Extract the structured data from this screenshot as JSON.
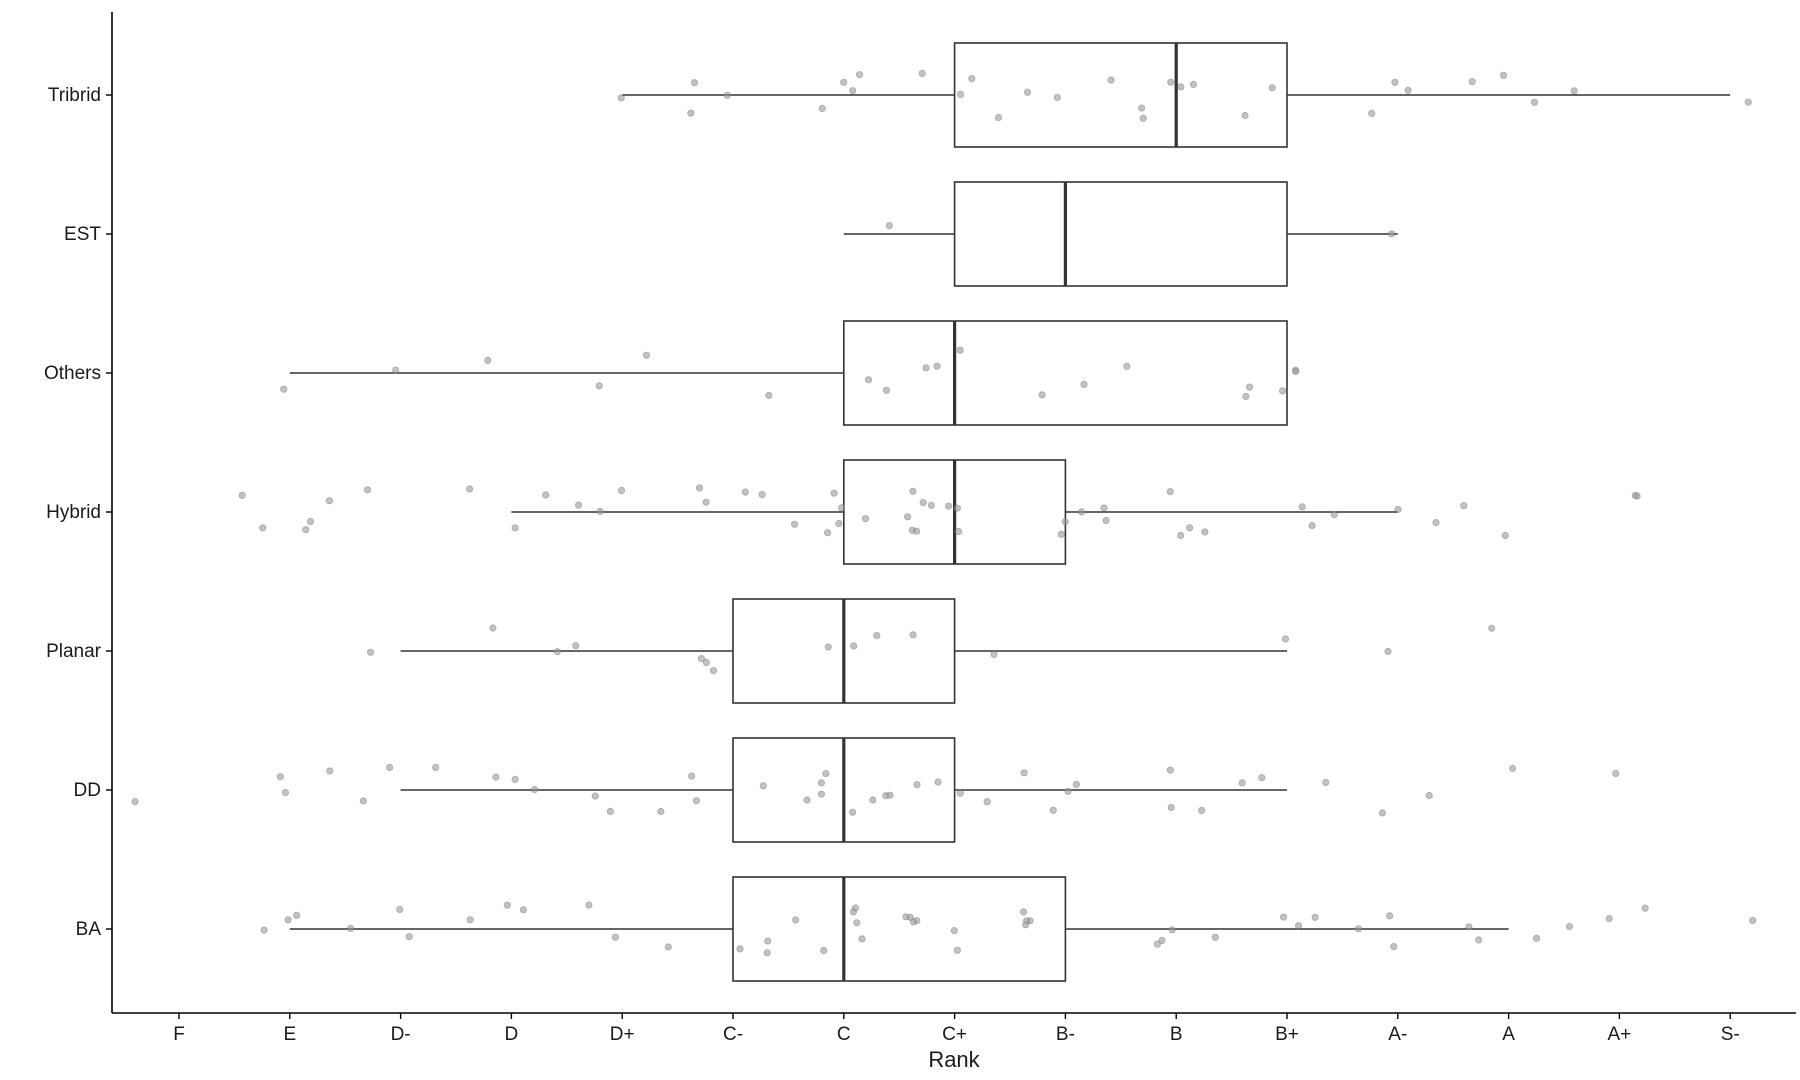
{
  "chart_data": {
    "type": "boxplot",
    "title": "",
    "xlabel": "Rank",
    "ylabel": "",
    "x_ticks": [
      "F",
      "E",
      "D-",
      "D",
      "D+",
      "C-",
      "C",
      "C+",
      "B-",
      "B",
      "B+",
      "A-",
      "A",
      "A+",
      "S-"
    ],
    "grid": false,
    "jitter_points": true,
    "colors": {
      "box_stroke": "#333333",
      "point_fill": "#9a9a9a",
      "axis": "#000000"
    },
    "categories": [
      "Tribrid",
      "EST",
      "Others",
      "Hybrid",
      "Planar",
      "DD",
      "BA"
    ],
    "series": [
      {
        "name": "Tribrid",
        "whisker_low": "D+",
        "q1": "C+",
        "median": "B",
        "q3": "B+",
        "whisker_high": "S-",
        "points": [
          "D+",
          "C-",
          "C-",
          "C-",
          "C",
          "C",
          "C",
          "C",
          "C+",
          "C+",
          "C+",
          "C+",
          "B-",
          "B-",
          "B-",
          "B",
          "B",
          "B",
          "B",
          "B",
          "B+",
          "B+",
          "A-",
          "A-",
          "A-",
          "A",
          "A",
          "A",
          "A+",
          "S-"
        ]
      },
      {
        "name": "EST",
        "whisker_low": "C",
        "q1": "C+",
        "median": "B-",
        "q3": "B+",
        "whisker_high": "A-",
        "points": [
          "C",
          "A-"
        ]
      },
      {
        "name": "Others",
        "whisker_low": "E",
        "q1": "C",
        "median": "C+",
        "q3": "B+",
        "whisker_high": "B+",
        "points": [
          "E",
          "D-",
          "D",
          "D+",
          "D+",
          "C-",
          "C",
          "C",
          "C+",
          "C+",
          "C+",
          "B-",
          "B-",
          "B",
          "B+",
          "B+",
          "B+",
          "B+",
          "B+"
        ]
      },
      {
        "name": "Hybrid",
        "whisker_low": "D",
        "q1": "C",
        "median": "C+",
        "q3": "B-",
        "whisker_high": "A-",
        "points": [
          "E",
          "E",
          "E",
          "E",
          "E",
          "D-",
          "D",
          "D",
          "D",
          "D+",
          "D+",
          "D+",
          "C-",
          "C-",
          "C-",
          "C-",
          "C",
          "C",
          "C",
          "C",
          "C",
          "C",
          "C+",
          "C+",
          "C+",
          "C+",
          "C+",
          "C+",
          "C+",
          "C+",
          "C+",
          "B-",
          "B-",
          "B-",
          "B-",
          "B-",
          "B",
          "B",
          "B",
          "B",
          "B+",
          "B+",
          "B+",
          "A-",
          "A-",
          "A",
          "A",
          "A+",
          "A+"
        ]
      },
      {
        "name": "Planar",
        "whisker_low": "D-",
        "q1": "C-",
        "median": "C",
        "q3": "C+",
        "whisker_high": "B+",
        "points": [
          "D-",
          "D",
          "D",
          "D+",
          "C-",
          "C-",
          "C-",
          "C",
          "C",
          "C",
          "C+",
          "C+",
          "B+",
          "A-",
          "A"
        ]
      },
      {
        "name": "DD",
        "whisker_low": "D-",
        "q1": "C-",
        "median": "C",
        "q3": "C+",
        "whisker_high": "B+",
        "points": [
          "F",
          "E",
          "E",
          "E",
          "D-",
          "D-",
          "D-",
          "D",
          "D",
          "D",
          "D+",
          "D+",
          "D+",
          "C-",
          "C-",
          "C-",
          "C",
          "C",
          "C",
          "C",
          "C",
          "C",
          "C",
          "C",
          "C+",
          "C+",
          "C+",
          "C+",
          "B-",
          "B-",
          "B-",
          "B-",
          "B",
          "B",
          "B",
          "B+",
          "B+",
          "B+",
          "A-",
          "A-",
          "A",
          "A+"
        ]
      },
      {
        "name": "BA",
        "whisker_low": "E",
        "q1": "C-",
        "median": "C",
        "q3": "B-",
        "whisker_high": "A",
        "points": [
          "E",
          "E",
          "E",
          "D-",
          "D-",
          "D-",
          "D",
          "D",
          "D",
          "D+",
          "D+",
          "D+",
          "C-",
          "C-",
          "C-",
          "C",
          "C",
          "C",
          "C",
          "C",
          "C",
          "C+",
          "C+",
          "C+",
          "C+",
          "C+",
          "C+",
          "B-",
          "B-",
          "B-",
          "B-",
          "B",
          "B",
          "B",
          "B",
          "B+",
          "B+",
          "B+",
          "A-",
          "A-",
          "A-",
          "A",
          "A",
          "A",
          "A+",
          "A+",
          "A+",
          "S-"
        ]
      }
    ]
  }
}
